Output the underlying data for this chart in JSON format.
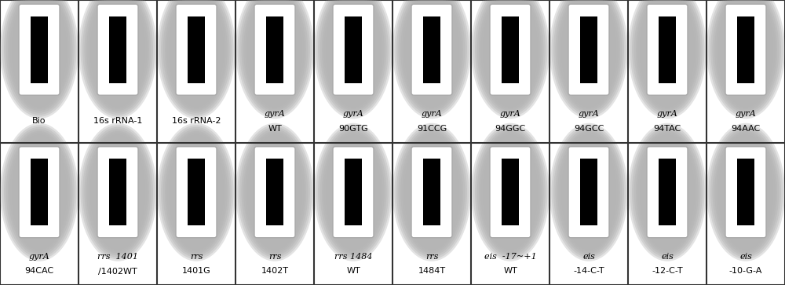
{
  "rows": 2,
  "cols": 10,
  "cells": [
    [
      "Bio",
      "16s rRNA-1",
      "16s rRNA-2",
      "gyrA\nWT",
      "gyrA\n90GTG",
      "gyrA\n91CCG",
      "gyrA\n94GGC",
      "gyrA\n94GCC",
      "gyrA\n94TAC",
      "gyrA\n94AAC"
    ],
    [
      "gyrA\n94CAC",
      "rrs  1401\n/1402WT",
      "rrs\n1401G",
      "rrs\n1402T",
      "rrs 1484\nWT",
      "rrs\n1484T",
      "eis  -17~+1\nWT",
      "eis\n-14-C-T",
      "eis\n-12-C-T",
      "eis\n-10-G-A"
    ]
  ],
  "italic_words": [
    "gyrA",
    "rrs",
    "eis"
  ],
  "bg_color": "#ffffff",
  "cell_bg": "#ffffff",
  "grid_color": "#333333",
  "text_color": "#000000",
  "font_size": 8.0,
  "fig_width": 10.0,
  "fig_height": 3.63,
  "dpi": 100
}
